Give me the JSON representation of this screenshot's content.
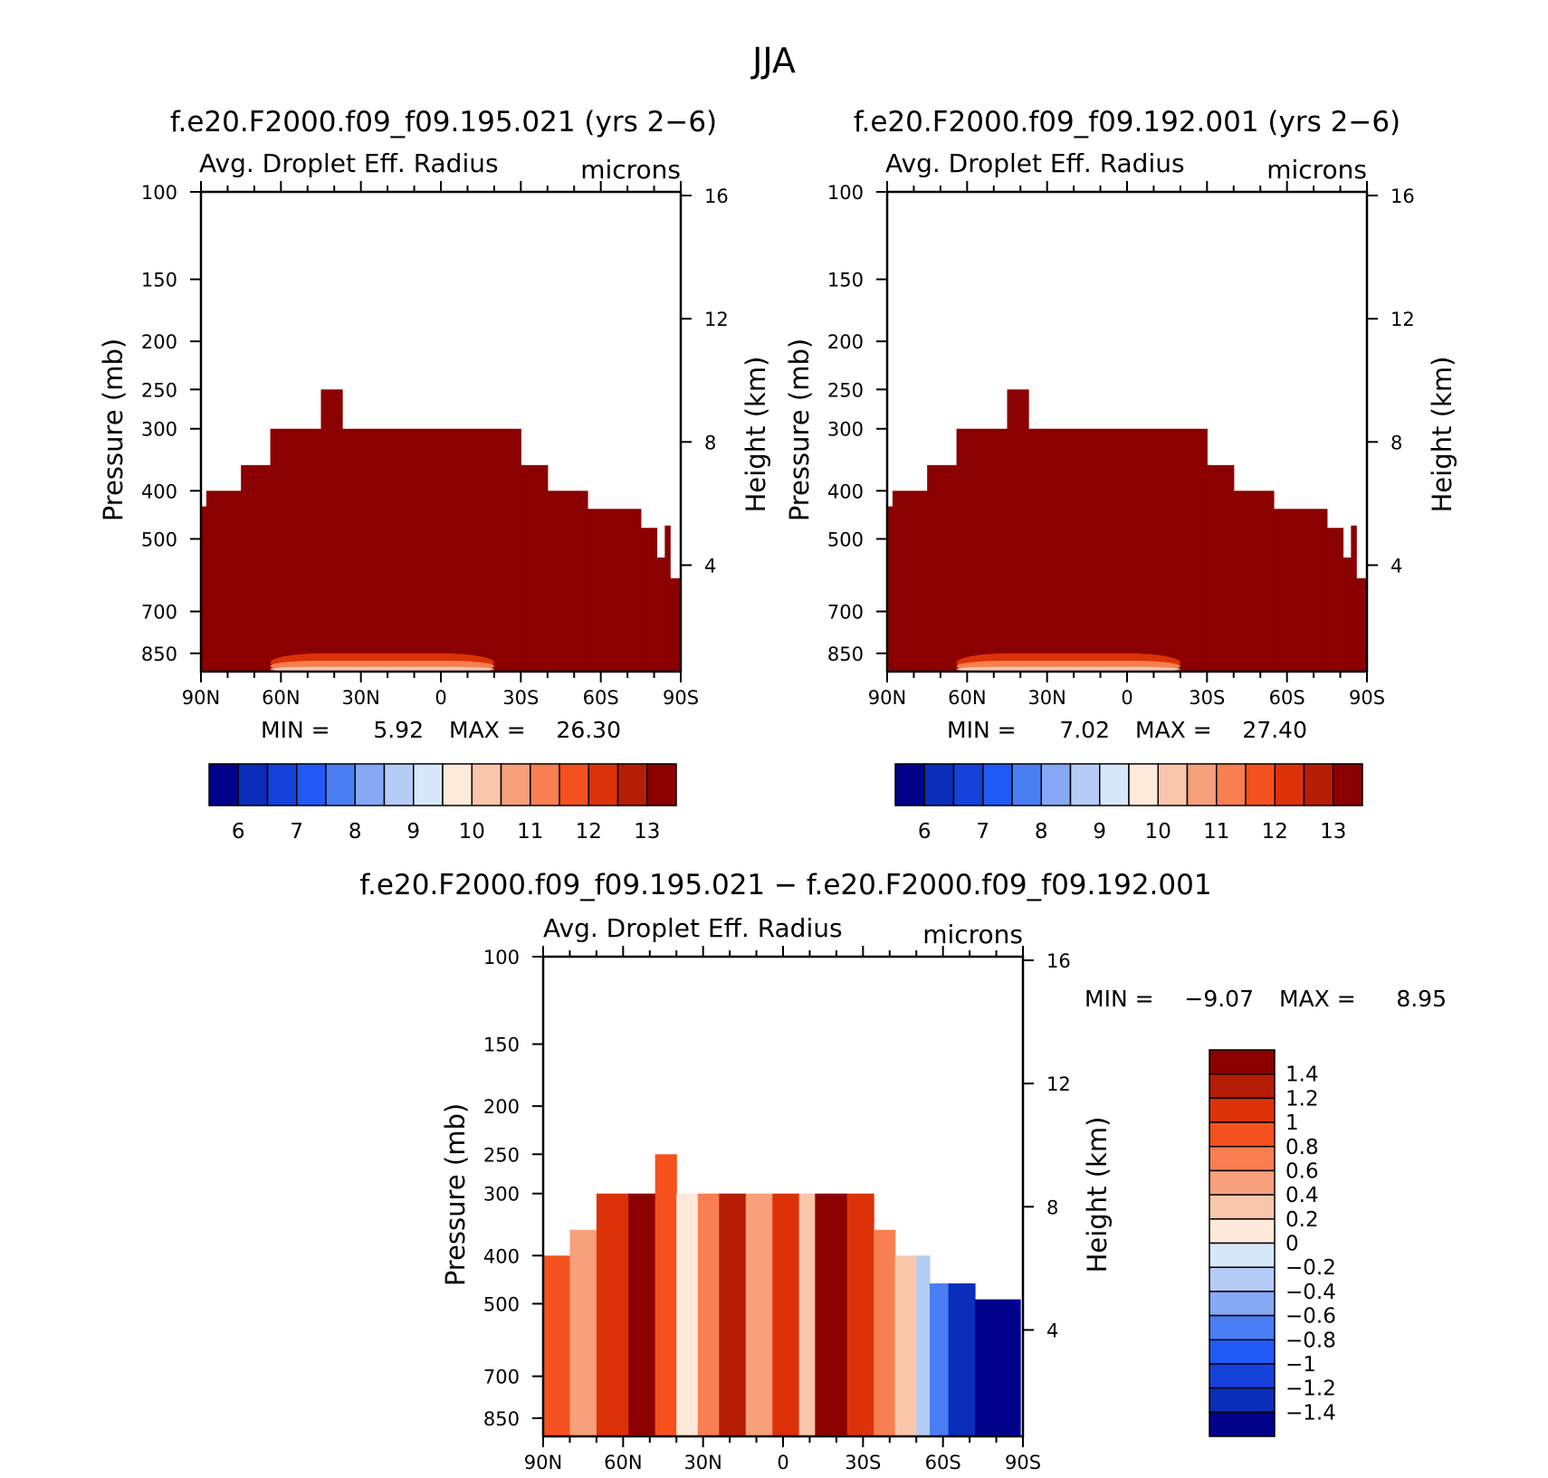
{
  "figure_title": "JJA",
  "colors": {
    "seq": [
      "#00008b",
      "#0a2dba",
      "#1541db",
      "#2059f5",
      "#4a7ef5",
      "#86a8f5",
      "#b5ccf7",
      "#d8e8fb",
      "#fdeadb",
      "#fac6ab",
      "#f7a07b",
      "#f77f51",
      "#f5511e",
      "#dd3208",
      "#b51d04",
      "#8b0000"
    ],
    "diff": [
      "#00008b",
      "#0a2dba",
      "#1541db",
      "#2059f5",
      "#4a7ef5",
      "#86a8f5",
      "#b5ccf7",
      "#d8e8fb",
      "#fdeadb",
      "#fac6ab",
      "#f7a07b",
      "#f77f51",
      "#f5511e",
      "#dd3208",
      "#b51d04",
      "#8b0000"
    ]
  },
  "chart_data": [
    {
      "id": "panel-a",
      "type": "heatmap",
      "title": "f.e20.F2000.f09_f09.195.021 (yrs 2−6)",
      "variable": "Avg. Droplet Eff. Radius",
      "units": "microns",
      "ylabel": "Pressure (mb)",
      "y2label": "Height (km)",
      "x_ticks": [
        "90N",
        "60N",
        "30N",
        "0",
        "30S",
        "60S",
        "90S"
      ],
      "x_values": [
        90,
        60,
        30,
        0,
        -30,
        -60,
        -90
      ],
      "y_ticks": [
        100,
        150,
        200,
        250,
        300,
        400,
        500,
        700,
        850
      ],
      "y_range_mb": [
        100,
        925
      ],
      "height_ticks_km": [
        16,
        12,
        8,
        4
      ],
      "stats": {
        "min_label": "MIN =",
        "min": "5.92",
        "max_label": "MAX =",
        "max": "26.30"
      },
      "colorbar": {
        "orientation": "horizontal",
        "tick_labels": [
          "6",
          "7",
          "8",
          "9",
          "10",
          "11",
          "12",
          "13"
        ],
        "levels": [
          5.5,
          6,
          6.5,
          7,
          7.5,
          8,
          8.5,
          9,
          9.5,
          10,
          10.5,
          11,
          11.5,
          12,
          12.5,
          13
        ]
      },
      "cloud_top_profile": [
        {
          "lat_from": 90,
          "lat_to": 88,
          "top_mb": 430
        },
        {
          "lat_from": 88,
          "lat_to": 75,
          "top_mb": 400
        },
        {
          "lat_from": 75,
          "lat_to": 64,
          "top_mb": 355
        },
        {
          "lat_from": 64,
          "lat_to": 45,
          "top_mb": 300
        },
        {
          "lat_from": 45,
          "lat_to": 37,
          "top_mb": 250
        },
        {
          "lat_from": 37,
          "lat_to": -30,
          "top_mb": 300
        },
        {
          "lat_from": -30,
          "lat_to": -40,
          "top_mb": 355
        },
        {
          "lat_from": -40,
          "lat_to": -55,
          "top_mb": 400
        },
        {
          "lat_from": -55,
          "lat_to": -75,
          "top_mb": 435
        },
        {
          "lat_from": -75,
          "lat_to": -81,
          "top_mb": 475
        },
        {
          "lat_from": -81,
          "lat_to": -84,
          "top_mb": 545
        },
        {
          "lat_from": -84,
          "lat_to": -86,
          "top_mb": 470
        },
        {
          "lat_from": -86,
          "lat_to": -88,
          "top_mb": 600
        },
        {
          "lat_from": -88,
          "lat_to": -89.5,
          "top_mb": 600
        }
      ],
      "dominant_value": 13.5
    },
    {
      "id": "panel-b",
      "type": "heatmap",
      "title": "f.e20.F2000.f09_f09.192.001 (yrs 2−6)",
      "variable": "Avg. Droplet Eff. Radius",
      "units": "microns",
      "ylabel": "Pressure (mb)",
      "y2label": "Height (km)",
      "x_ticks": [
        "90N",
        "60N",
        "30N",
        "0",
        "30S",
        "60S",
        "90S"
      ],
      "x_values": [
        90,
        60,
        30,
        0,
        -30,
        -60,
        -90
      ],
      "y_ticks": [
        100,
        150,
        200,
        250,
        300,
        400,
        500,
        700,
        850
      ],
      "y_range_mb": [
        100,
        925
      ],
      "height_ticks_km": [
        16,
        12,
        8,
        4
      ],
      "stats": {
        "min_label": "MIN =",
        "min": "7.02",
        "max_label": "MAX =",
        "max": "27.40"
      },
      "colorbar": {
        "orientation": "horizontal",
        "tick_labels": [
          "6",
          "7",
          "8",
          "9",
          "10",
          "11",
          "12",
          "13"
        ],
        "levels": [
          5.5,
          6,
          6.5,
          7,
          7.5,
          8,
          8.5,
          9,
          9.5,
          10,
          10.5,
          11,
          11.5,
          12,
          12.5,
          13
        ]
      },
      "cloud_top_profile": [
        {
          "lat_from": 90,
          "lat_to": 88,
          "top_mb": 430
        },
        {
          "lat_from": 88,
          "lat_to": 75,
          "top_mb": 400
        },
        {
          "lat_from": 75,
          "lat_to": 64,
          "top_mb": 355
        },
        {
          "lat_from": 64,
          "lat_to": 45,
          "top_mb": 300
        },
        {
          "lat_from": 45,
          "lat_to": 37,
          "top_mb": 250
        },
        {
          "lat_from": 37,
          "lat_to": -30,
          "top_mb": 300
        },
        {
          "lat_from": -30,
          "lat_to": -40,
          "top_mb": 355
        },
        {
          "lat_from": -40,
          "lat_to": -55,
          "top_mb": 400
        },
        {
          "lat_from": -55,
          "lat_to": -75,
          "top_mb": 435
        },
        {
          "lat_from": -75,
          "lat_to": -81,
          "top_mb": 475
        },
        {
          "lat_from": -81,
          "lat_to": -84,
          "top_mb": 545
        },
        {
          "lat_from": -84,
          "lat_to": -86,
          "top_mb": 470
        },
        {
          "lat_from": -86,
          "lat_to": -88,
          "top_mb": 600
        },
        {
          "lat_from": -88,
          "lat_to": -89.5,
          "top_mb": 600
        }
      ],
      "dominant_value": 13.5
    },
    {
      "id": "panel-diff",
      "type": "heatmap",
      "title": "f.e20.F2000.f09_f09.195.021 − f.e20.F2000.f09_f09.192.001",
      "variable": "Avg. Droplet Eff. Radius",
      "units": "microns",
      "ylabel": "Pressure (mb)",
      "y2label": "Height (km)",
      "x_ticks": [
        "90N",
        "60N",
        "30N",
        "0",
        "30S",
        "60S",
        "90S"
      ],
      "x_values": [
        90,
        60,
        30,
        0,
        -30,
        -60,
        -90
      ],
      "y_ticks": [
        100,
        150,
        200,
        250,
        300,
        400,
        500,
        700,
        850
      ],
      "y_range_mb": [
        100,
        925
      ],
      "height_ticks_km": [
        16,
        12,
        8,
        4
      ],
      "stats": {
        "min_label": "MIN =",
        "min": "−9.07",
        "max_label": "MAX =",
        "max": "8.95"
      },
      "colorbar": {
        "orientation": "vertical",
        "tick_labels": [
          "1.4",
          "1.2",
          "1",
          "0.8",
          "0.6",
          "0.4",
          "0.2",
          "0",
          "−0.2",
          "−0.4",
          "−0.6",
          "−0.8",
          "−1",
          "−1.2",
          "−1.4"
        ]
      },
      "cloud_top_profile": [
        {
          "lat_from": 90,
          "lat_to": 84,
          "top_mb": 400
        },
        {
          "lat_from": 84,
          "lat_to": 75,
          "top_mb": 400
        },
        {
          "lat_from": 75,
          "lat_to": 64,
          "top_mb": 355
        },
        {
          "lat_from": 64,
          "lat_to": 45,
          "top_mb": 300
        },
        {
          "lat_from": 45,
          "lat_to": 37,
          "top_mb": 250
        },
        {
          "lat_from": 37,
          "lat_to": -32,
          "top_mb": 300
        },
        {
          "lat_from": -32,
          "lat_to": -40,
          "top_mb": 355
        },
        {
          "lat_from": -40,
          "lat_to": -55,
          "top_mb": 400
        },
        {
          "lat_from": -55,
          "lat_to": -75,
          "top_mb": 455
        },
        {
          "lat_from": -75,
          "lat_to": -84,
          "top_mb": 490
        },
        {
          "lat_from": -84,
          "lat_to": -89,
          "top_mb": 560
        }
      ],
      "diff_bands": [
        {
          "lat_from": 90,
          "lat_to": 80,
          "value": 0.9
        },
        {
          "lat_from": 80,
          "lat_to": 70,
          "value": 0.5
        },
        {
          "lat_from": 70,
          "lat_to": 58,
          "value": 1.2
        },
        {
          "lat_from": 58,
          "lat_to": 48,
          "value": 1.5
        },
        {
          "lat_from": 48,
          "lat_to": 40,
          "value": 0.8
        },
        {
          "lat_from": 40,
          "lat_to": 32,
          "value": 0.1
        },
        {
          "lat_from": 32,
          "lat_to": 24,
          "value": 0.6
        },
        {
          "lat_from": 24,
          "lat_to": 14,
          "value": 1.3
        },
        {
          "lat_from": 14,
          "lat_to": 4,
          "value": 0.4
        },
        {
          "lat_from": 4,
          "lat_to": -6,
          "value": 1.0
        },
        {
          "lat_from": -6,
          "lat_to": -12,
          "value": 0.3
        },
        {
          "lat_from": -12,
          "lat_to": -24,
          "value": 1.5
        },
        {
          "lat_from": -24,
          "lat_to": -34,
          "value": 1.1
        },
        {
          "lat_from": -34,
          "lat_to": -42,
          "value": 0.7
        },
        {
          "lat_from": -42,
          "lat_to": -50,
          "value": 0.3
        },
        {
          "lat_from": -50,
          "lat_to": -55,
          "value": -0.3
        },
        {
          "lat_from": -55,
          "lat_to": -62,
          "value": -0.8
        },
        {
          "lat_from": -62,
          "lat_to": -72,
          "value": -1.3
        },
        {
          "lat_from": -72,
          "lat_to": -89,
          "value": -1.5
        }
      ]
    }
  ]
}
